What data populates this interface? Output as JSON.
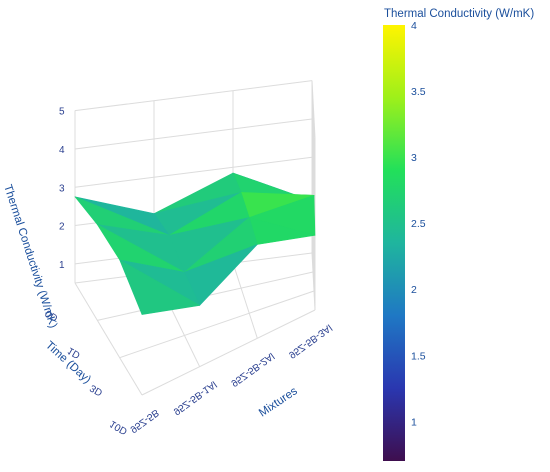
{
  "chart_data": {
    "type": "surface3d",
    "title": "",
    "zlabel": "Thermal Conductivity (W/mK)",
    "ylabel": "Time (Day)",
    "xlabel": "Mixtures",
    "mixtures": [
      "95Z-5B",
      "95Z-5B-1Al",
      "95Z-5B-2Al",
      "95Z-5B-3Al"
    ],
    "times": [
      "0D",
      "1D",
      "3D",
      "10D"
    ],
    "z_ticks": [
      "1",
      "2",
      "3",
      "4",
      "5"
    ],
    "zlim": [
      0.5,
      5
    ],
    "values": [
      [
        2.75,
        2.05,
        2.85,
        0.95
      ],
      [
        3.0,
        2.3,
        3.0,
        2.35
      ],
      [
        3.05,
        2.15,
        3.0,
        3.0
      ],
      [
        2.6,
        2.1,
        2.95,
        2.45
      ]
    ],
    "colorbar": {
      "title": "Thermal Conductivity (W/mK)",
      "ticks": [
        "1",
        "1.5",
        "2",
        "2.5",
        "3",
        "3.5",
        "4"
      ],
      "range": [
        0.7,
        4.0
      ],
      "colorscale": "viridis-like",
      "colors": [
        "#3e0e4e",
        "#2a37b0",
        "#1f78c4",
        "#1fb59e",
        "#22e05a",
        "#9ef01a",
        "#fff400"
      ]
    }
  }
}
